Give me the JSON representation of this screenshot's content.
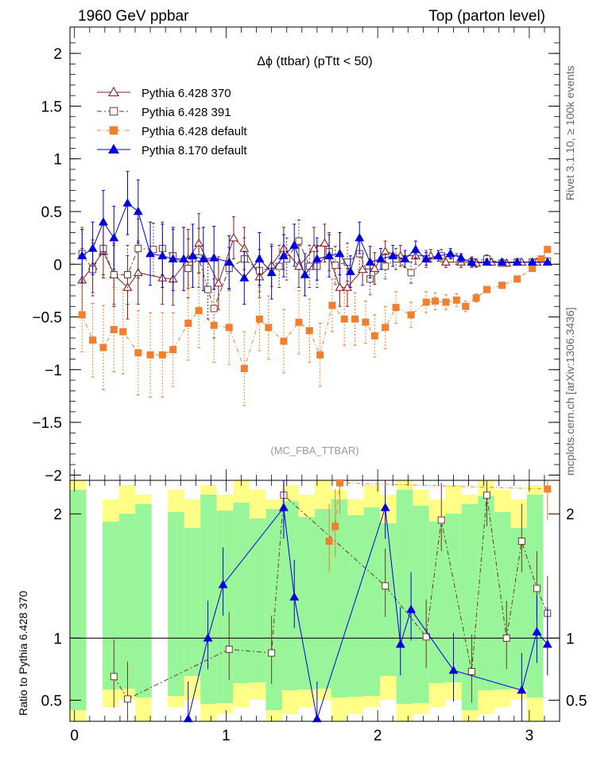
{
  "header": {
    "left": "1960 GeV ppbar",
    "right": "Top (parton level)"
  },
  "side_text": {
    "rivet": "Rivet 3.1.10, ≥ 100k events",
    "mcplots": "mcplots.cern.ch [arXiv:1306.3436]"
  },
  "analysis_label": "(MC_FBA_TTBAR)",
  "chart_data": [
    {
      "panel": "main",
      "type": "line",
      "title": "Δϕ (ttbar) (pTtt < 50)",
      "xlim": [
        -0.03,
        3.2
      ],
      "ylim": [
        -2.05,
        2.25
      ],
      "yticks": [
        -2,
        -1.5,
        -1,
        -0.5,
        0,
        0.5,
        1,
        1.5,
        2
      ],
      "ytick_labels": [
        "−2",
        "−1.5",
        "−1",
        "−0.5",
        "0",
        "0.5",
        "1",
        "1.5",
        "2"
      ],
      "xticks": [
        0,
        1,
        2,
        3
      ],
      "legend_position": "top-left",
      "series": [
        {
          "name": "Pythia 6.428 370",
          "color": "#8b1a1a",
          "marker": "open-triangle",
          "dash": "",
          "x": [
            0.05,
            0.12,
            0.19,
            0.26,
            0.35,
            0.42,
            0.58,
            0.65,
            0.75,
            0.82,
            0.95,
            1.05,
            1.12,
            1.22,
            1.3,
            1.38,
            1.48,
            1.58,
            1.65,
            1.75,
            1.8,
            1.9,
            1.98,
            2.05,
            2.15,
            2.25,
            2.35,
            2.45,
            2.55,
            2.65,
            2.75,
            2.85,
            2.95,
            3.05,
            3.12
          ],
          "y": [
            -0.15,
            -0.02,
            0.12,
            -0.1,
            -0.22,
            -0.08,
            -0.13,
            -0.14,
            0.05,
            0.2,
            -0.18,
            0.25,
            0.15,
            -0.12,
            -0.01,
            0.15,
            -0.02,
            0.15,
            0.2,
            -0.22,
            -0.22,
            -0.05,
            -0.04,
            0.12,
            0.08,
            0.08,
            0.08,
            0.02,
            0.02,
            0.01,
            0.02,
            0.01,
            0.02,
            0.02,
            0.02
          ],
          "err": [
            0.3,
            0.25,
            0.25,
            0.3,
            0.3,
            0.3,
            0.25,
            0.25,
            0.28,
            0.28,
            0.25,
            0.2,
            0.2,
            0.2,
            0.2,
            0.2,
            0.2,
            0.2,
            0.18,
            0.18,
            0.18,
            0.15,
            0.15,
            0.1,
            0.1,
            0.08,
            0.06,
            0.05,
            0.05,
            0.04,
            0.03,
            0.03,
            0.02,
            0.02,
            0.02
          ]
        },
        {
          "name": "Pythia 6.428 391",
          "color": "#6b3a2a",
          "marker": "open-square",
          "dash": "6,3,2,3",
          "x": [
            0.05,
            0.12,
            0.19,
            0.26,
            0.35,
            0.42,
            0.52,
            0.58,
            0.65,
            0.75,
            0.82,
            0.88,
            0.92,
            1.02,
            1.12,
            1.22,
            1.35,
            1.4,
            1.48,
            1.55,
            1.6,
            1.68,
            1.72,
            1.8,
            1.88,
            1.95,
            2.05,
            2.12,
            2.22,
            2.32,
            2.42,
            2.52,
            2.62,
            2.72,
            2.82,
            2.92,
            3.02,
            3.12
          ],
          "y": [
            0.1,
            -0.05,
            0.15,
            -0.1,
            -0.1,
            0.15,
            0.14,
            0.15,
            0.08,
            -0.04,
            0.06,
            -0.24,
            -0.42,
            -0.04,
            0.05,
            -0.06,
            -0.02,
            0.05,
            0.22,
            -0.02,
            -0.02,
            0.12,
            -0.01,
            0.02,
            0.1,
            -0.14,
            -0.02,
            0.05,
            -0.08,
            0.05,
            0.08,
            0.05,
            0.02,
            0.05,
            0.01,
            0.02,
            0.02,
            0.03
          ],
          "err": [
            0.25,
            0.25,
            0.25,
            0.28,
            0.28,
            0.28,
            0.25,
            0.25,
            0.25,
            0.28,
            0.28,
            0.28,
            0.28,
            0.2,
            0.2,
            0.2,
            0.2,
            0.2,
            0.2,
            0.2,
            0.2,
            0.18,
            0.18,
            0.18,
            0.15,
            0.15,
            0.12,
            0.1,
            0.1,
            0.08,
            0.06,
            0.05,
            0.05,
            0.04,
            0.03,
            0.03,
            0.02,
            0.02
          ]
        },
        {
          "name": "Pythia 6.428 default",
          "color": "#f08030",
          "marker": "filled-square",
          "dash": "5,3,1,3",
          "x": [
            0.05,
            0.12,
            0.19,
            0.26,
            0.32,
            0.42,
            0.5,
            0.58,
            0.65,
            0.75,
            0.82,
            0.92,
            1.02,
            1.12,
            1.22,
            1.28,
            1.38,
            1.48,
            1.55,
            1.62,
            1.7,
            1.78,
            1.85,
            1.92,
            1.98,
            2.05,
            2.12,
            2.22,
            2.32,
            2.38,
            2.45,
            2.52,
            2.58,
            2.65,
            2.72,
            2.82,
            2.92,
            3.02,
            3.08,
            3.12
          ],
          "y": [
            -0.48,
            -0.72,
            -0.79,
            -0.62,
            -0.64,
            -0.84,
            -0.86,
            -0.86,
            -0.81,
            -0.56,
            -0.44,
            -0.58,
            -0.6,
            -0.99,
            -0.52,
            -0.6,
            -0.73,
            -0.55,
            -0.63,
            -0.86,
            -0.39,
            -0.52,
            -0.52,
            -0.55,
            -0.68,
            -0.6,
            -0.41,
            -0.48,
            -0.36,
            -0.35,
            -0.36,
            -0.34,
            -0.4,
            -0.32,
            -0.24,
            -0.2,
            -0.14,
            -0.04,
            0.05,
            0.14
          ],
          "err": [
            0.35,
            0.35,
            0.4,
            0.4,
            0.4,
            0.4,
            0.4,
            0.4,
            0.35,
            0.35,
            0.35,
            0.35,
            0.35,
            0.35,
            0.3,
            0.3,
            0.3,
            0.3,
            0.3,
            0.3,
            0.25,
            0.25,
            0.25,
            0.2,
            0.2,
            0.2,
            0.15,
            0.12,
            0.1,
            0.08,
            0.07,
            0.06,
            0.05,
            0.04,
            0.03,
            0.03,
            0.02,
            0.02,
            0.02,
            0.02
          ]
        },
        {
          "name": "Pythia 8.170 default",
          "color": "#0000dd",
          "marker": "filled-triangle",
          "dash": "",
          "x": [
            0.05,
            0.12,
            0.19,
            0.26,
            0.35,
            0.42,
            0.5,
            0.58,
            0.65,
            0.72,
            0.78,
            0.85,
            0.92,
            1.02,
            1.12,
            1.22,
            1.3,
            1.38,
            1.45,
            1.52,
            1.6,
            1.68,
            1.75,
            1.82,
            1.88,
            1.95,
            2.02,
            2.1,
            2.18,
            2.25,
            2.32,
            2.4,
            2.48,
            2.55,
            2.62,
            2.72,
            2.82,
            2.92,
            3.02,
            3.12
          ],
          "y": [
            0.08,
            0.15,
            0.4,
            0.25,
            0.58,
            0.5,
            0.1,
            0.08,
            0.05,
            0.05,
            0.08,
            0.05,
            0.06,
            0.02,
            -0.13,
            0.05,
            -0.08,
            0.08,
            0.18,
            -0.1,
            0.05,
            0.08,
            0.1,
            -0.07,
            0.25,
            0.02,
            0.05,
            0.08,
            0.05,
            0.14,
            0.05,
            0.08,
            0.1,
            0.06,
            0.02,
            0.02,
            0.02,
            0.02,
            0.02,
            0.02
          ],
          "err": [
            0.25,
            0.25,
            0.3,
            0.3,
            0.3,
            0.3,
            0.3,
            0.3,
            0.3,
            0.3,
            0.3,
            0.3,
            0.3,
            0.25,
            0.25,
            0.25,
            0.25,
            0.2,
            0.2,
            0.2,
            0.2,
            0.2,
            0.2,
            0.15,
            0.15,
            0.15,
            0.1,
            0.1,
            0.08,
            0.08,
            0.06,
            0.05,
            0.05,
            0.04,
            0.04,
            0.03,
            0.03,
            0.02,
            0.02,
            0.02
          ]
        }
      ]
    },
    {
      "panel": "ratio",
      "type": "line",
      "ylabel": "Ratio to Pythia 6.428 370",
      "xlim": [
        -0.03,
        3.2
      ],
      "ylim": [
        0.33,
        2.27
      ],
      "yticks": [
        0.5,
        1,
        2
      ],
      "ytick_labels": [
        "0.5",
        "1",
        "2"
      ],
      "xticks": [
        0,
        1,
        2,
        3
      ],
      "xtick_labels": [
        "0",
        "1",
        "2",
        "3"
      ],
      "reference_line": 1,
      "series": [
        {
          "name": "Pythia 6.428 391",
          "x": [
            0.26,
            0.35,
            1.02,
            1.3,
            1.38,
            2.05,
            2.32,
            2.42,
            2.62,
            2.72,
            2.85,
            2.95,
            3.05,
            3.12
          ],
          "y": [
            0.69,
            0.51,
            0.91,
            0.88,
            2.15,
            1.42,
            1.01,
            1.95,
            0.73,
            2.15,
            1.0,
            1.78,
            1.4,
            1.2
          ]
        },
        {
          "name": "Pythia 8.170 default",
          "x": [
            0.75,
            0.88,
            0.98,
            1.38,
            1.45,
            1.6,
            2.05,
            2.15,
            2.22,
            2.5,
            2.95,
            3.05,
            3.12
          ],
          "y": [
            0.35,
            1.0,
            1.43,
            2.05,
            1.33,
            0.35,
            2.05,
            0.95,
            1.23,
            0.74,
            0.58,
            1.05,
            0.95
          ]
        },
        {
          "name": "Pythia 6.428 default",
          "x": [
            1.68,
            1.72,
            1.75,
            3.12
          ],
          "y": [
            1.78,
            1.9,
            2.25,
            2.2
          ]
        }
      ]
    }
  ]
}
